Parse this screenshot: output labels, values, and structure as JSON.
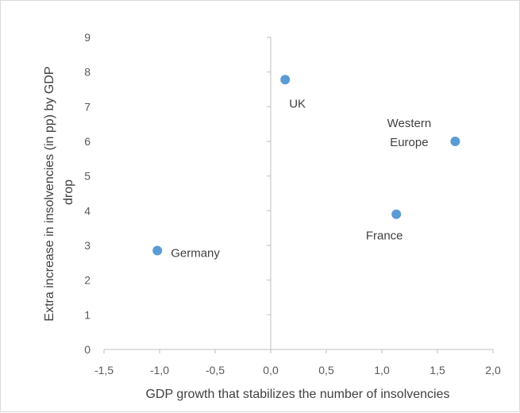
{
  "chart_data": {
    "type": "scatter",
    "title": "",
    "xlabel": "GDP growth that stabilizes the number of insolvencies",
    "ylabel_lines": [
      "Extra increase in insolvencies (in pp) by GDP",
      "drop"
    ],
    "xlim": [
      -1.5,
      2.0
    ],
    "ylim": [
      0,
      9
    ],
    "x_ticks": [
      "-1,5",
      "-1,0",
      "-0,5",
      "0,0",
      "0,5",
      "1,0",
      "1,5",
      "2,0"
    ],
    "y_ticks": [
      "0",
      "1",
      "2",
      "3",
      "4",
      "5",
      "6",
      "7",
      "8",
      "9"
    ],
    "grid": false,
    "marker_color": "#5B9BD5",
    "points": [
      {
        "name": "Germany",
        "label_lines": [
          "Germany"
        ],
        "x": -1.02,
        "y": 2.85
      },
      {
        "name": "UK",
        "label_lines": [
          "UK"
        ],
        "x": 0.13,
        "y": 7.78
      },
      {
        "name": "France",
        "label_lines": [
          "France"
        ],
        "x": 1.13,
        "y": 3.9
      },
      {
        "name": "Western Europe",
        "label_lines": [
          "Western",
          "Europe"
        ],
        "x": 1.66,
        "y": 6.0
      }
    ]
  }
}
